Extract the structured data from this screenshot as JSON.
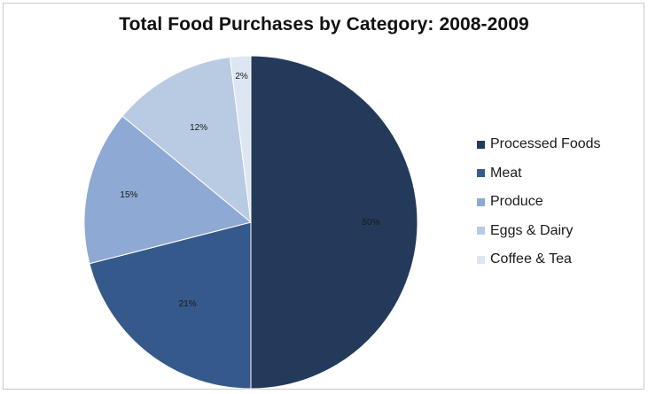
{
  "chart_data": {
    "type": "pie",
    "title": "Total Food Purchases by Category: 2008-2009",
    "categories": [
      "Processed Foods",
      "Meat",
      "Produce",
      "Eggs & Dairy",
      "Coffee & Tea"
    ],
    "values": [
      50,
      21,
      15,
      12,
      2
    ],
    "labels": [
      "50%",
      "21%",
      "15%",
      "12%",
      "2%"
    ],
    "colors": [
      "#243a5a",
      "#35598a",
      "#8ea9d3",
      "#b9cbe3",
      "#dde6f3"
    ],
    "legend_position": "right",
    "start_angle": "12 o'clock, clockwise"
  }
}
